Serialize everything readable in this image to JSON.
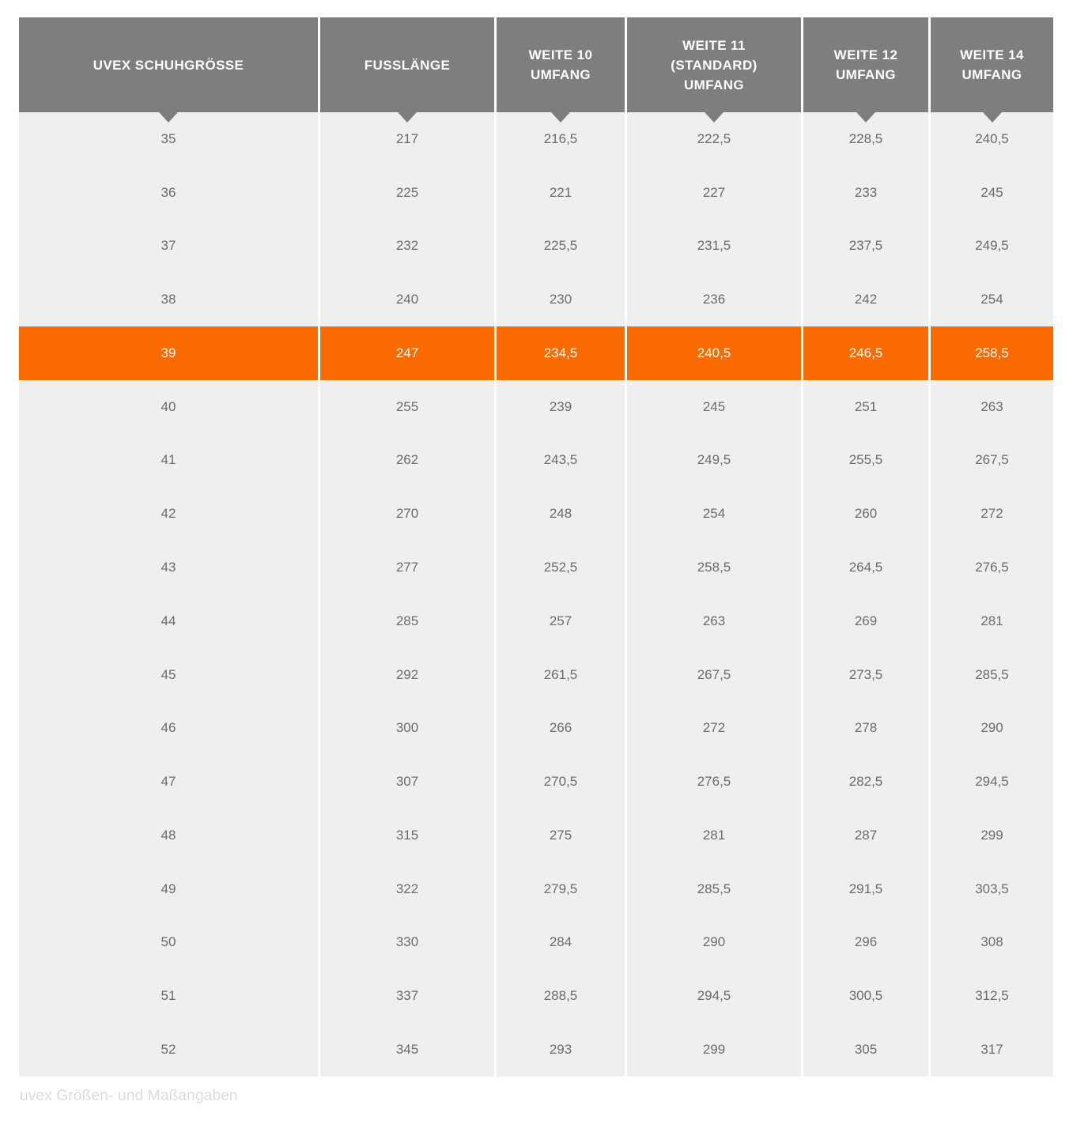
{
  "chart_data": {
    "type": "table",
    "title": "",
    "columns": [
      "UVEX SCHUHGRÖSSE",
      "FUSSLÄNGE",
      "WEITE 10 UMFANG",
      "WEITE 11 (STANDARD) UMFANG",
      "WEITE 12 UMFANG",
      "WEITE 14 UMFANG"
    ],
    "column_header_lines": [
      [
        "UVEX SCHUHGRÖSSE"
      ],
      [
        "FUSSLÄNGE"
      ],
      [
        "WEITE 10",
        "UMFANG"
      ],
      [
        "WEITE 11",
        "(STANDARD)",
        "UMFANG"
      ],
      [
        "WEITE 12",
        "UMFANG"
      ],
      [
        "WEITE 14",
        "UMFANG"
      ]
    ],
    "rows": [
      [
        "35",
        "217",
        "216,5",
        "222,5",
        "228,5",
        "240,5"
      ],
      [
        "36",
        "225",
        "221",
        "227",
        "233",
        "245"
      ],
      [
        "37",
        "232",
        "225,5",
        "231,5",
        "237,5",
        "249,5"
      ],
      [
        "38",
        "240",
        "230",
        "236",
        "242",
        "254"
      ],
      [
        "39",
        "247",
        "234,5",
        "240,5",
        "246,5",
        "258,5"
      ],
      [
        "40",
        "255",
        "239",
        "245",
        "251",
        "263"
      ],
      [
        "41",
        "262",
        "243,5",
        "249,5",
        "255,5",
        "267,5"
      ],
      [
        "42",
        "270",
        "248",
        "254",
        "260",
        "272"
      ],
      [
        "43",
        "277",
        "252,5",
        "258,5",
        "264,5",
        "276,5"
      ],
      [
        "44",
        "285",
        "257",
        "263",
        "269",
        "281"
      ],
      [
        "45",
        "292",
        "261,5",
        "267,5",
        "273,5",
        "285,5"
      ],
      [
        "46",
        "300",
        "266",
        "272",
        "278",
        "290"
      ],
      [
        "47",
        "307",
        "270,5",
        "276,5",
        "282,5",
        "294,5"
      ],
      [
        "48",
        "315",
        "275",
        "281",
        "287",
        "299"
      ],
      [
        "49",
        "322",
        "279,5",
        "285,5",
        "291,5",
        "303,5"
      ],
      [
        "50",
        "330",
        "284",
        "290",
        "296",
        "308"
      ],
      [
        "51",
        "337",
        "288,5",
        "294,5",
        "300,5",
        "312,5"
      ],
      [
        "52",
        "345",
        "293",
        "299",
        "305",
        "317"
      ]
    ],
    "highlighted_row_index": 4,
    "highlighted_row_size": "39",
    "caption": "uvex Größen- und Maßangaben",
    "colors": {
      "header_bg": "#7f7d7d",
      "header_text": "#ffffff",
      "row_bg": "#f0efef",
      "row_text": "#6b6b6b",
      "highlight_bg": "#f96a01",
      "highlight_text": "#ffffff",
      "caption_text": "#dcdcdc"
    }
  }
}
